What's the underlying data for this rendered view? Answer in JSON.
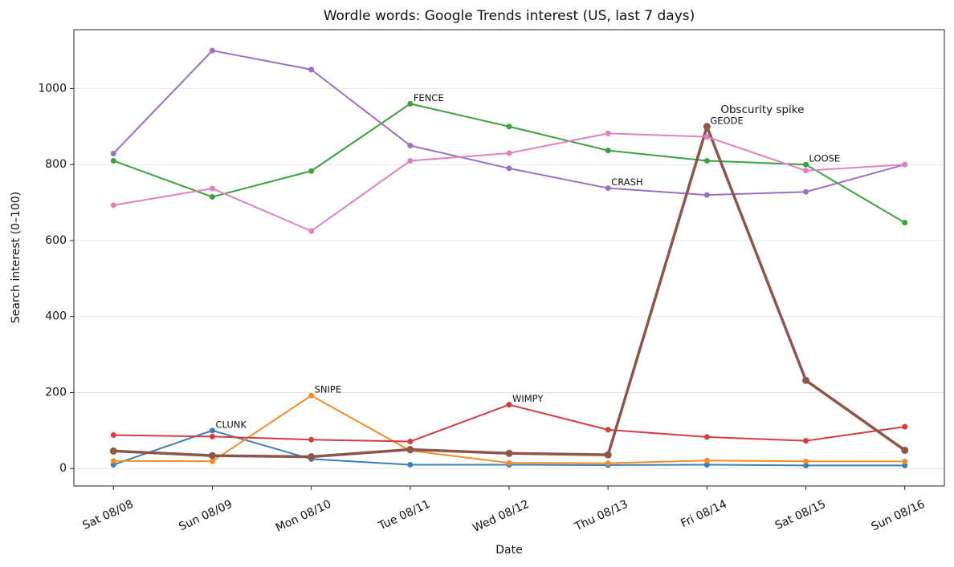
{
  "chart_data": {
    "type": "line",
    "title": "Wordle words: Google Trends interest (US, last 7 days)",
    "xlabel": "Date",
    "ylabel": "Search interest (0–100)",
    "categories": [
      "Sat 08/08",
      "Sun 08/09",
      "Mon 08/10",
      "Tue 08/11",
      "Wed 08/12",
      "Thu 08/13",
      "Fri 08/14",
      "Sat 08/15",
      "Sun 08/16"
    ],
    "ylim": [
      -46,
      1155
    ],
    "yticks": [
      0,
      200,
      400,
      600,
      800,
      1000
    ],
    "grid": true,
    "series": [
      {
        "color": "#3a7fb8",
        "linewidth": 2,
        "values": [
          10,
          100,
          25,
          10,
          10,
          9,
          10,
          8,
          8
        ]
      },
      {
        "color": "#f28c28",
        "linewidth": 2,
        "values": [
          20,
          19,
          192,
          47,
          15,
          14,
          21,
          19,
          19
        ]
      },
      {
        "color": "#3ca03c",
        "linewidth": 2,
        "values": [
          810,
          715,
          783,
          960,
          900,
          837,
          810,
          800,
          647
        ]
      },
      {
        "color": "#d43d3d",
        "linewidth": 2,
        "values": [
          88,
          84,
          76,
          71,
          168,
          102,
          83,
          73,
          110
        ]
      },
      {
        "color": "#9a6fc2",
        "linewidth": 2,
        "values": [
          829,
          1100,
          1050,
          850,
          790,
          738,
          720,
          728,
          800
        ]
      },
      {
        "color": "#8c564b",
        "linewidth": 3.5,
        "values": [
          46,
          34,
          31,
          50,
          40,
          36,
          900,
          232,
          48
        ]
      },
      {
        "color": "#e07fc4",
        "linewidth": 2,
        "values": [
          693,
          737,
          625,
          810,
          830,
          882,
          873,
          784,
          800
        ]
      }
    ],
    "annotations": [
      {
        "text": "CLUNK",
        "x": "Sun 08/09",
        "y": 100
      },
      {
        "text": "SNIPE",
        "x": "Mon 08/10",
        "y": 192
      },
      {
        "text": "FENCE",
        "x": "Tue 08/11",
        "y": 960
      },
      {
        "text": "WIMPY",
        "x": "Wed 08/12",
        "y": 168
      },
      {
        "text": "CRASH",
        "x": "Thu 08/13",
        "y": 738
      },
      {
        "text": "GEODE",
        "x": "Fri 08/14",
        "y": 900
      },
      {
        "text": "LOOSE",
        "x": "Sat 08/15",
        "y": 800
      }
    ],
    "callout": {
      "text": "Obscurity spike",
      "x": "Fri 08/14",
      "y": 900
    }
  }
}
